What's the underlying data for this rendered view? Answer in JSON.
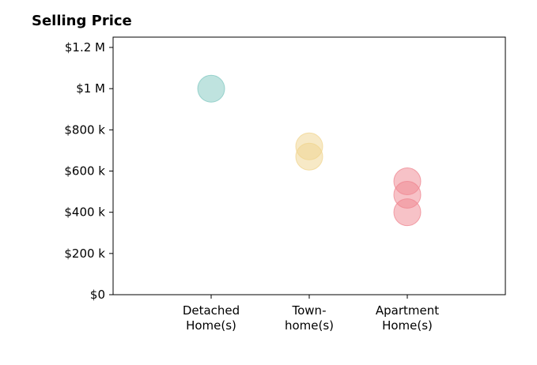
{
  "chart_data": {
    "type": "scatter",
    "title": "Selling Price",
    "xlabel": "",
    "ylabel": "",
    "categories": [
      [
        "Detached",
        "Home(s)"
      ],
      [
        "Town-",
        "home(s)"
      ],
      [
        "Apartment",
        "Home(s)"
      ]
    ],
    "x_range": [
      0,
      4
    ],
    "ylim": [
      0,
      1250000
    ],
    "yticks": [
      {
        "value": 0,
        "label": "$0"
      },
      {
        "value": 200000,
        "label": "$200 k"
      },
      {
        "value": 400000,
        "label": "$400 k"
      },
      {
        "value": 600000,
        "label": "$600 k"
      },
      {
        "value": 800000,
        "label": "$800 k"
      },
      {
        "value": 1000000,
        "label": "$1 M"
      },
      {
        "value": 1200000,
        "label": "$1.2 M"
      }
    ],
    "grid": false,
    "legend": "none",
    "colors": [
      "#7fc7c0",
      "#f0d48e",
      "#ef8590"
    ],
    "points": [
      {
        "category": 0,
        "value": 1000000
      },
      {
        "category": 1,
        "value": 720000
      },
      {
        "category": 1,
        "value": 670000
      },
      {
        "category": 2,
        "value": 550000
      },
      {
        "category": 2,
        "value": 485000
      },
      {
        "category": 2,
        "value": 400000
      }
    ]
  }
}
